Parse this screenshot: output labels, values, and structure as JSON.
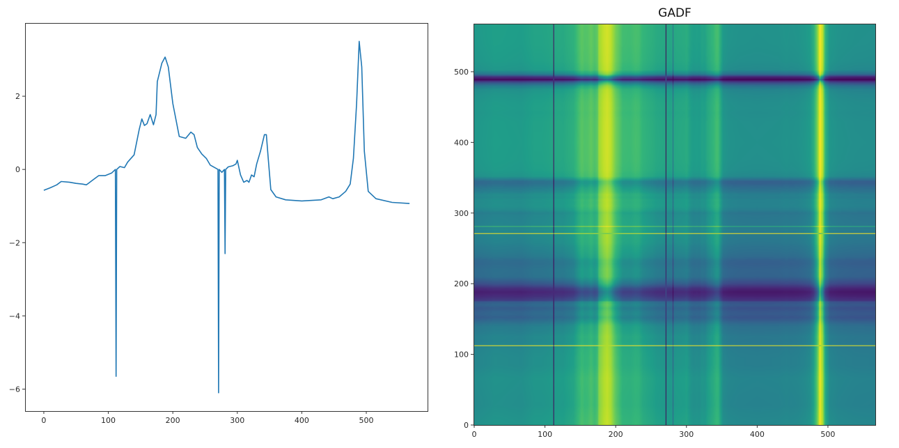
{
  "chart_data": [
    {
      "type": "line",
      "title": "",
      "xlabel": "",
      "ylabel": "",
      "xlim": [
        -28,
        595
      ],
      "ylim": [
        -6.6,
        4.0
      ],
      "grid": false,
      "xticks": [
        "0",
        "100",
        "200",
        "300",
        "400",
        "500"
      ],
      "xtick_values": [
        0,
        100,
        200,
        300,
        400,
        500
      ],
      "yticks": [
        "−6",
        "−4",
        "−2",
        "0",
        "2"
      ],
      "ytick_values": [
        -6,
        -4,
        -2,
        0,
        2
      ],
      "color": "#1f77b4",
      "series": [
        {
          "x": [
            0,
            10,
            20,
            27,
            40,
            50,
            60,
            66,
            75,
            85,
            95,
            105,
            111,
            112,
            113,
            118,
            125,
            130,
            140,
            148,
            152,
            156,
            160,
            165,
            170,
            174,
            176,
            183,
            188,
            193,
            200,
            210,
            220,
            228,
            233,
            238,
            245,
            252,
            258,
            268,
            270,
            271,
            272,
            276,
            280,
            281,
            282,
            286,
            293,
            298,
            300,
            305,
            310,
            315,
            318,
            322,
            326,
            330,
            336,
            342,
            345,
            348,
            352,
            360,
            375,
            400,
            430,
            442,
            448,
            458,
            468,
            475,
            480,
            485,
            489,
            493,
            497,
            503,
            515,
            540,
            567
          ],
          "y": [
            -0.57,
            -0.5,
            -0.42,
            -0.33,
            -0.35,
            -0.38,
            -0.4,
            -0.42,
            -0.3,
            -0.17,
            -0.17,
            -0.1,
            0.0,
            -5.65,
            0.0,
            0.08,
            0.05,
            0.2,
            0.4,
            1.1,
            1.38,
            1.2,
            1.25,
            1.5,
            1.22,
            1.5,
            2.4,
            2.9,
            3.07,
            2.8,
            1.8,
            0.9,
            0.85,
            1.02,
            0.95,
            0.6,
            0.42,
            0.3,
            0.12,
            0.02,
            0.0,
            -6.1,
            0.0,
            -0.08,
            0.0,
            -2.3,
            0.0,
            0.07,
            0.1,
            0.15,
            0.25,
            -0.15,
            -0.35,
            -0.3,
            -0.35,
            -0.15,
            -0.2,
            0.15,
            0.5,
            0.95,
            0.95,
            0.3,
            -0.55,
            -0.75,
            -0.83,
            -0.86,
            -0.83,
            -0.75,
            -0.8,
            -0.75,
            -0.6,
            -0.4,
            0.3,
            1.8,
            3.5,
            2.8,
            0.5,
            -0.6,
            -0.8,
            -0.9,
            -0.93
          ]
        }
      ]
    },
    {
      "type": "heatmap",
      "title": "GADF",
      "xlabel": "",
      "ylabel": "",
      "colormap": "viridis",
      "source": "Gramian Angular Difference Field of the left series",
      "xlim": [
        0,
        567
      ],
      "ylim": [
        0,
        567
      ],
      "origin": "lower",
      "xticks": [
        "0",
        "100",
        "200",
        "300",
        "400",
        "500"
      ],
      "xtick_values": [
        0,
        100,
        200,
        300,
        400,
        500
      ],
      "yticks": [
        "0",
        "100",
        "200",
        "300",
        "400",
        "500"
      ],
      "ytick_values": [
        0,
        100,
        200,
        300,
        400,
        500
      ]
    }
  ]
}
